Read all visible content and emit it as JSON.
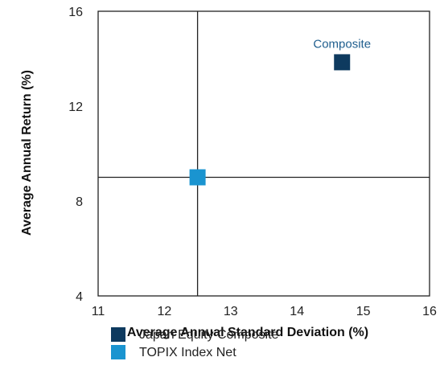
{
  "chart_data": {
    "type": "scatter",
    "title": "",
    "xlabel": "Average Annual Standard Deviation (%)",
    "ylabel": "Average Annual Return (%)",
    "xlim": [
      11,
      16
    ],
    "ylim": [
      4,
      16
    ],
    "xticks": [
      "11",
      "12",
      "13",
      "14",
      "15",
      "16"
    ],
    "yticks": [
      "4",
      "8",
      "12",
      "16"
    ],
    "reference_lines": {
      "x": 12.5,
      "y": 9.0
    },
    "grid": false,
    "legend_position": "bottom",
    "series": [
      {
        "name": "Japan Equity Composite",
        "x": 14.68,
        "y": 13.85,
        "label": "Composite",
        "color": "#0e3a5f",
        "marker": "square"
      },
      {
        "name": "TOPIX Index Net",
        "x": 12.5,
        "y": 9.0,
        "label": "",
        "color": "#1a94d0",
        "marker": "square"
      }
    ]
  }
}
